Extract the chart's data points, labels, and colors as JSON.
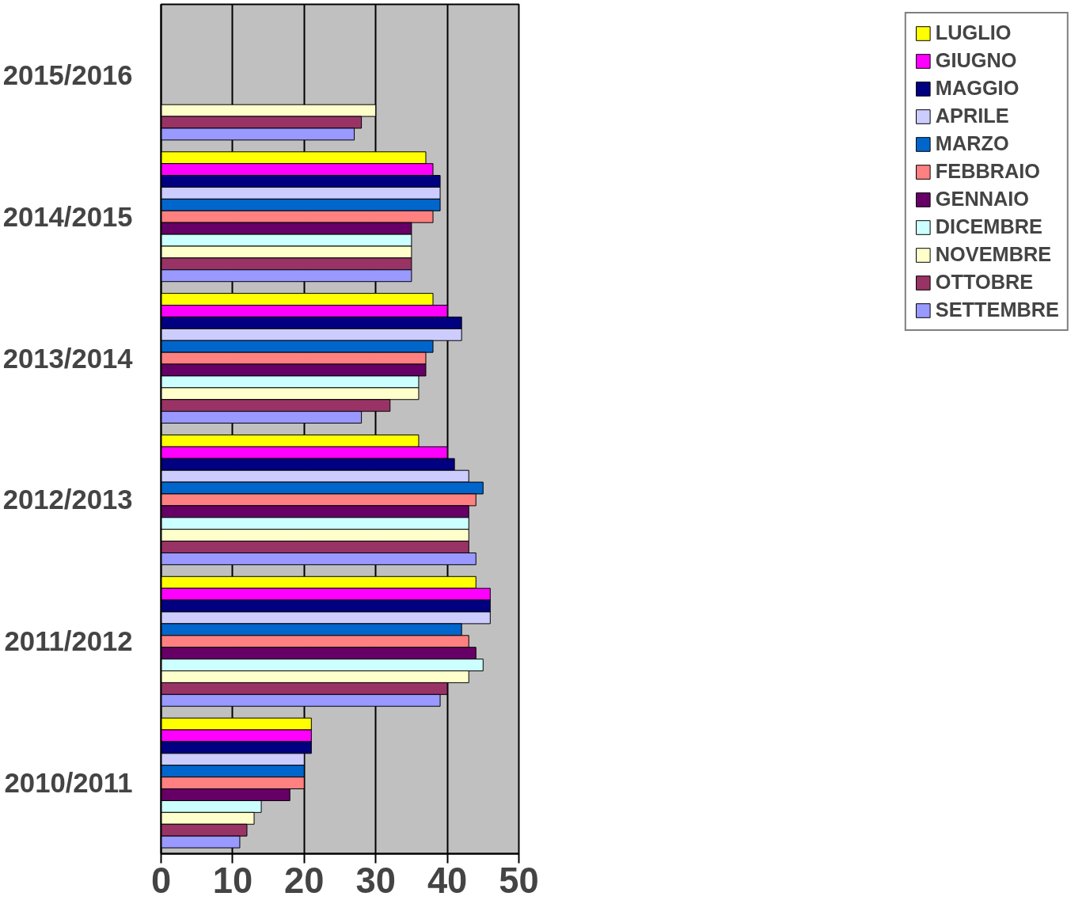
{
  "chart_data": {
    "type": "bar",
    "orientation": "horizontal",
    "categories": [
      "2015/2016",
      "2014/2015",
      "2013/2014",
      "2012/2013",
      "2011/2012",
      "2010/2011"
    ],
    "xlim": [
      0,
      50
    ],
    "xticks": [
      0,
      10,
      20,
      30,
      40,
      50
    ],
    "grid": "x",
    "legend": "right",
    "series": [
      {
        "name": "LUGLIO",
        "color": "#ffff00",
        "values": [
          null,
          37,
          38,
          36,
          44,
          21
        ]
      },
      {
        "name": "GIUGNO",
        "color": "#ff00ff",
        "values": [
          null,
          38,
          40,
          40,
          46,
          21
        ]
      },
      {
        "name": "MAGGIO",
        "color": "#000080",
        "values": [
          null,
          39,
          42,
          41,
          46,
          21
        ]
      },
      {
        "name": "APRILE",
        "color": "#ccccff",
        "values": [
          null,
          39,
          42,
          43,
          46,
          20
        ]
      },
      {
        "name": "MARZO",
        "color": "#0066cc",
        "values": [
          null,
          39,
          38,
          45,
          42,
          20
        ]
      },
      {
        "name": "FEBBRAIO",
        "color": "#ff8080",
        "values": [
          null,
          38,
          37,
          44,
          43,
          20
        ]
      },
      {
        "name": "GENNAIO",
        "color": "#660066",
        "values": [
          null,
          35,
          37,
          43,
          44,
          18
        ]
      },
      {
        "name": "DICEMBRE",
        "color": "#ccffff",
        "values": [
          null,
          35,
          36,
          43,
          45,
          14
        ]
      },
      {
        "name": "NOVEMBRE",
        "color": "#ffffcc",
        "values": [
          30,
          35,
          36,
          43,
          43,
          13
        ]
      },
      {
        "name": "OTTOBRE",
        "color": "#993366",
        "values": [
          28,
          35,
          32,
          43,
          40,
          12
        ]
      },
      {
        "name": "SETTEMBRE",
        "color": "#9999ff",
        "values": [
          27,
          35,
          28,
          44,
          39,
          11
        ]
      }
    ]
  }
}
